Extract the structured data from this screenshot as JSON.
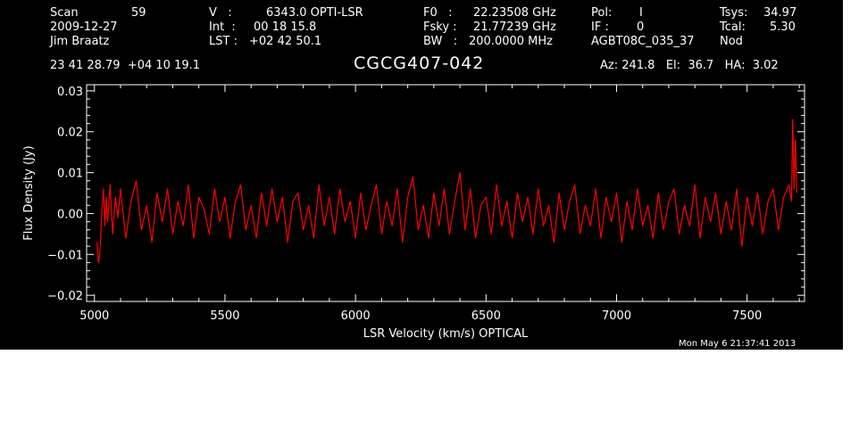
{
  "header": {
    "scan_label": "Scan",
    "scan_value": "59",
    "date": "2009-12-27",
    "observer": "Jim Braatz",
    "v_label": "V   :",
    "v_value": "6343.0 OPTI-LSR",
    "int_label": "Int  :",
    "int_value": "00 18 15.8",
    "lst_label": "LST :",
    "lst_value": "+02 42 50.1",
    "f0_label": "F0   :",
    "f0_value": "22.23508 GHz",
    "fsky_label": "Fsky :",
    "fsky_value": "21.77239 GHz",
    "bw_label": "BW   :",
    "bw_value": "200.0000 MHz",
    "pol_label": "Pol:",
    "pol_value": "I",
    "if_label": "IF :",
    "if_value": "0",
    "project": "AGBT08C_035_37",
    "tsys_label": "Tsys:",
    "tsys_value": "34.97",
    "tcal_label": "Tcal:",
    "tcal_value": "5.30",
    "mode": "Nod",
    "coords": "23 41 28.79  +04 10 19.1",
    "source": "CGCG407-042",
    "az_el_ha": "Az: 241.8   El:  36.7   HA:  3.02"
  },
  "timestamp": "Mon May  6 21:37:41 2013",
  "colors": {
    "background": "#000000",
    "axes": "#ffffff",
    "trace": "#ff0000"
  },
  "chart_data": {
    "type": "line",
    "xlabel": "LSR Velocity (km/s) OPTICAL",
    "ylabel": "Flux Density (Jy)",
    "xlim": [
      4970,
      7720
    ],
    "ylim": [
      -0.0215,
      0.0315
    ],
    "xticks": [
      5000,
      5500,
      6000,
      6500,
      7000,
      7500
    ],
    "xtick_labels": [
      "5000",
      "5500",
      "6000",
      "6500",
      "7000",
      "7500"
    ],
    "yticks": [
      -0.02,
      -0.01,
      0.0,
      0.01,
      0.02,
      0.03
    ],
    "ytick_labels": [
      "−0.02",
      "−0.01",
      "0.00",
      "0.01",
      "0.02",
      "0.03"
    ],
    "grid": false,
    "series": [
      {
        "color": "#ff0000",
        "x": [
          5010,
          5015,
          5020,
          5025,
          5030,
          5035,
          5040,
          5045,
          5050,
          5060,
          5070,
          5080,
          5090,
          5100,
          5120,
          5140,
          5160,
          5180,
          5200,
          5220,
          5240,
          5260,
          5280,
          5300,
          5320,
          5340,
          5360,
          5380,
          5400,
          5420,
          5440,
          5460,
          5480,
          5500,
          5520,
          5540,
          5560,
          5580,
          5600,
          5620,
          5640,
          5660,
          5680,
          5700,
          5720,
          5740,
          5760,
          5780,
          5800,
          5820,
          5840,
          5860,
          5880,
          5900,
          5920,
          5940,
          5960,
          5980,
          6000,
          6020,
          6040,
          6060,
          6080,
          6100,
          6120,
          6140,
          6160,
          6180,
          6200,
          6220,
          6240,
          6260,
          6280,
          6300,
          6320,
          6340,
          6360,
          6380,
          6400,
          6420,
          6440,
          6460,
          6480,
          6500,
          6520,
          6540,
          6560,
          6580,
          6600,
          6620,
          6640,
          6660,
          6680,
          6700,
          6720,
          6740,
          6760,
          6780,
          6800,
          6820,
          6840,
          6860,
          6880,
          6900,
          6920,
          6940,
          6960,
          6980,
          7000,
          7020,
          7040,
          7060,
          7080,
          7100,
          7120,
          7140,
          7160,
          7180,
          7200,
          7220,
          7240,
          7260,
          7280,
          7300,
          7320,
          7340,
          7360,
          7380,
          7400,
          7420,
          7440,
          7460,
          7480,
          7500,
          7520,
          7540,
          7560,
          7580,
          7600,
          7620,
          7640,
          7660,
          7670,
          7675,
          7680,
          7685,
          7690
        ],
        "y": [
          -0.007,
          -0.012,
          -0.01,
          -0.004,
          0.002,
          0.006,
          -0.003,
          0.004,
          -0.002,
          0.007,
          -0.005,
          0.004,
          -0.001,
          0.006,
          -0.006,
          0.003,
          0.008,
          -0.004,
          0.002,
          -0.007,
          0.005,
          -0.002,
          0.006,
          -0.005,
          0.003,
          -0.003,
          0.007,
          -0.006,
          0.004,
          0.001,
          -0.005,
          0.006,
          -0.002,
          0.004,
          -0.006,
          0.003,
          0.007,
          -0.004,
          0.002,
          -0.006,
          0.005,
          -0.003,
          0.006,
          -0.002,
          0.004,
          -0.007,
          0.003,
          0.005,
          -0.004,
          0.002,
          -0.006,
          0.007,
          -0.003,
          0.004,
          -0.005,
          0.006,
          -0.002,
          0.003,
          -0.006,
          0.005,
          -0.004,
          0.002,
          0.007,
          -0.005,
          0.003,
          -0.003,
          0.006,
          -0.007,
          0.004,
          0.009,
          -0.004,
          0.002,
          -0.006,
          0.005,
          -0.003,
          0.006,
          -0.005,
          0.003,
          0.01,
          -0.004,
          0.006,
          -0.006,
          0.002,
          0.004,
          -0.005,
          0.007,
          -0.003,
          0.003,
          -0.006,
          0.005,
          -0.002,
          0.004,
          -0.005,
          0.006,
          -0.003,
          0.002,
          -0.007,
          0.005,
          -0.004,
          0.003,
          0.007,
          -0.005,
          0.002,
          -0.003,
          0.006,
          -0.006,
          0.004,
          -0.002,
          0.005,
          -0.007,
          0.003,
          -0.004,
          0.006,
          -0.003,
          0.002,
          -0.006,
          0.005,
          -0.004,
          0.003,
          0.006,
          -0.005,
          0.002,
          -0.003,
          0.007,
          -0.006,
          0.004,
          -0.002,
          0.005,
          -0.005,
          0.003,
          -0.004,
          0.006,
          -0.008,
          0.004,
          -0.003,
          0.005,
          -0.005,
          0.003,
          0.006,
          -0.004,
          0.004,
          0.007,
          0.003,
          0.023,
          0.006,
          0.018,
          0.005
        ]
      }
    ]
  }
}
